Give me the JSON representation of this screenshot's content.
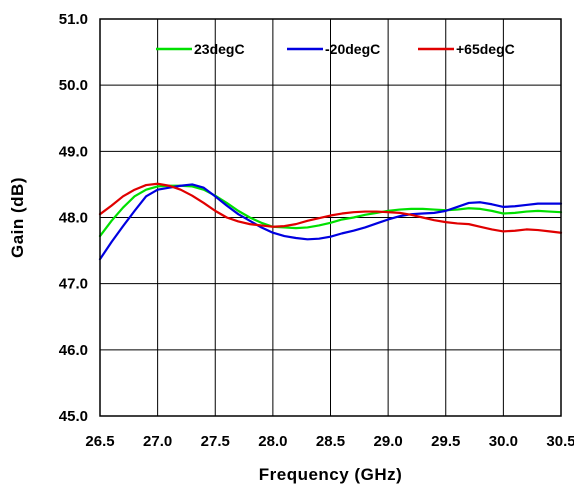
{
  "chart_data": {
    "type": "line",
    "xlabel": "Frequency (GHz)",
    "ylabel": "Gain (dB)",
    "xlim": [
      26.5,
      30.5
    ],
    "ylim": [
      45.0,
      51.0
    ],
    "x_ticks": [
      "26.5",
      "27.0",
      "27.5",
      "28.0",
      "28.5",
      "29.0",
      "29.5",
      "30.0",
      "30.5"
    ],
    "y_ticks": [
      "45.0",
      "46.0",
      "47.0",
      "48.0",
      "49.0",
      "50.0",
      "51.0"
    ],
    "grid": true,
    "legend": "top, inside plot",
    "series": [
      {
        "name": "23degC",
        "color": "#00e000",
        "x": [
          26.5,
          26.6,
          26.7,
          26.8,
          26.9,
          27.0,
          27.1,
          27.2,
          27.3,
          27.4,
          27.5,
          27.6,
          27.7,
          27.8,
          27.9,
          28.0,
          28.1,
          28.2,
          28.3,
          28.4,
          28.5,
          28.6,
          28.7,
          28.8,
          28.9,
          29.0,
          29.1,
          29.2,
          29.3,
          29.4,
          29.5,
          29.6,
          29.7,
          29.8,
          29.9,
          30.0,
          30.1,
          30.2,
          30.3,
          30.4,
          30.5
        ],
        "values": [
          47.72,
          47.95,
          48.15,
          48.32,
          48.42,
          48.47,
          48.48,
          48.48,
          48.47,
          48.42,
          48.33,
          48.22,
          48.1,
          48.0,
          47.92,
          47.86,
          47.85,
          47.84,
          47.85,
          47.88,
          47.92,
          47.97,
          48.0,
          48.04,
          48.07,
          48.1,
          48.12,
          48.13,
          48.13,
          48.12,
          48.11,
          48.12,
          48.14,
          48.13,
          48.1,
          48.06,
          48.07,
          48.09,
          48.1,
          48.09,
          48.08
        ]
      },
      {
        "name": "-20degC",
        "color": "#0000e0",
        "x": [
          26.5,
          26.6,
          26.7,
          26.8,
          26.9,
          27.0,
          27.1,
          27.2,
          27.3,
          27.4,
          27.5,
          27.6,
          27.7,
          27.8,
          27.9,
          28.0,
          28.1,
          28.2,
          28.3,
          28.4,
          28.5,
          28.6,
          28.7,
          28.8,
          28.9,
          29.0,
          29.1,
          29.2,
          29.3,
          29.4,
          29.5,
          29.6,
          29.7,
          29.8,
          29.9,
          30.0,
          30.1,
          30.2,
          30.3,
          30.4,
          30.5
        ],
        "values": [
          47.37,
          47.63,
          47.87,
          48.1,
          48.32,
          48.42,
          48.45,
          48.48,
          48.5,
          48.45,
          48.32,
          48.18,
          48.05,
          47.95,
          47.85,
          47.77,
          47.72,
          47.69,
          47.67,
          47.68,
          47.71,
          47.76,
          47.8,
          47.85,
          47.91,
          47.97,
          48.02,
          48.05,
          48.06,
          48.07,
          48.1,
          48.16,
          48.22,
          48.23,
          48.2,
          48.16,
          48.17,
          48.19,
          48.21,
          48.21,
          48.21
        ]
      },
      {
        "name": "+65degC",
        "color": "#e00000",
        "x": [
          26.5,
          26.6,
          26.7,
          26.8,
          26.9,
          27.0,
          27.1,
          27.2,
          27.3,
          27.4,
          27.5,
          27.6,
          27.7,
          27.8,
          27.9,
          28.0,
          28.1,
          28.2,
          28.3,
          28.4,
          28.5,
          28.6,
          28.7,
          28.8,
          28.9,
          29.0,
          29.1,
          29.2,
          29.3,
          29.4,
          29.5,
          29.6,
          29.7,
          29.8,
          29.9,
          30.0,
          30.1,
          30.2,
          30.3,
          30.4,
          30.5
        ],
        "values": [
          48.05,
          48.18,
          48.32,
          48.42,
          48.49,
          48.51,
          48.48,
          48.42,
          48.33,
          48.22,
          48.1,
          48.0,
          47.94,
          47.9,
          47.88,
          47.86,
          47.87,
          47.9,
          47.95,
          47.99,
          48.03,
          48.06,
          48.08,
          48.09,
          48.09,
          48.08,
          48.07,
          48.04,
          48.0,
          47.96,
          47.93,
          47.91,
          47.9,
          47.86,
          47.82,
          47.79,
          47.8,
          47.82,
          47.81,
          47.79,
          47.77
        ]
      }
    ]
  }
}
